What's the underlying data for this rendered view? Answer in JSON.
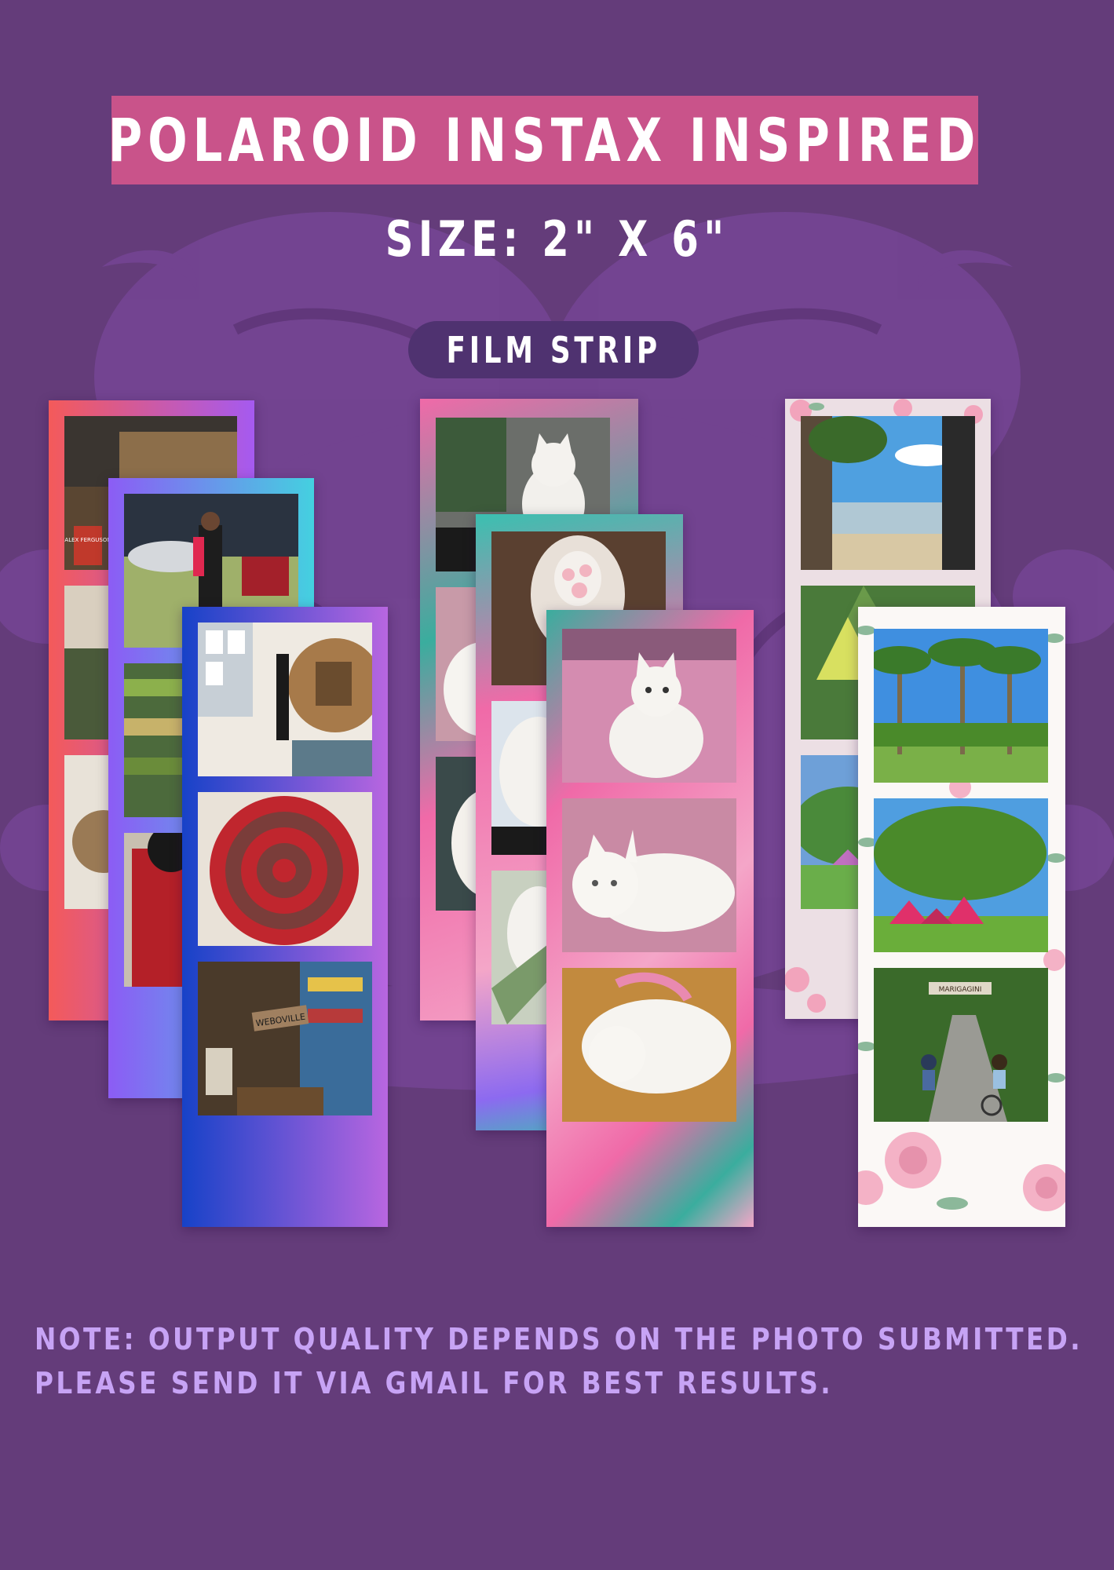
{
  "header": {
    "title": "POLAROID INSTAX INSPIRED",
    "size_label": "SIZE: 2\" X 6\"",
    "type_pill": "FILM STRIP"
  },
  "note": {
    "line1": "NOTE: OUTPUT QUALITY DEPENDS ON THE PHOTO SUBMITTED.",
    "line2": "PLEASE SEND IT VIA GMAIL FOR BEST RESULTS."
  },
  "samples": [
    {
      "theme": "gradient",
      "subject": "bookstore"
    },
    {
      "theme": "pink-teal swirl",
      "subject": "white cat"
    },
    {
      "theme": "floral",
      "subject": "outdoor travel"
    }
  ],
  "colors": {
    "background": "#643c7a",
    "banner": "#c9538a",
    "pill": "#4f3270",
    "note_text": "#c7a3f5"
  },
  "photo_labels": {
    "book_sign": "ALEX FERGUSON",
    "street_sign": "WEBOVILLE",
    "gate_sign": "MARIGAGINI"
  }
}
